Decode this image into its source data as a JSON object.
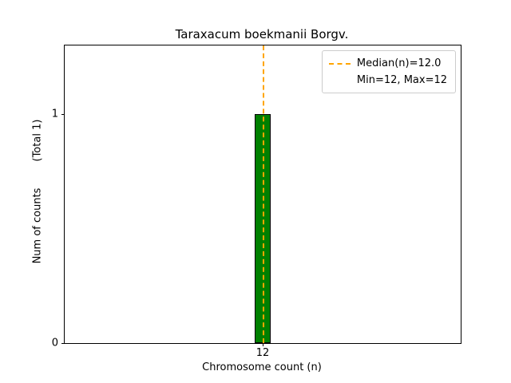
{
  "figure": {
    "title": "Taraxacum boekmanii Borgv.",
    "xlabel": "Chromosome count (n)",
    "ylabel": "Num of counts        (Total 1)"
  },
  "legend": {
    "items": [
      {
        "label": "Median(n)=12.0",
        "marker": "dashed-line",
        "color": "#FFA500"
      },
      {
        "label": "Min=12, Max=12",
        "marker": "none",
        "color": ""
      }
    ]
  },
  "chart_data": {
    "type": "bar",
    "title": "Taraxacum boekmanii Borgv.",
    "xlabel": "Chromosome count (n)",
    "ylabel": "Num of counts",
    "total_annotation": "(Total 1)",
    "categories": [
      12
    ],
    "values": [
      1
    ],
    "bar_color": "#008000",
    "bar_edge_color": "#000000",
    "bar_width": 0.04,
    "median_line": {
      "x": 12,
      "label": "Median(n)=12.0",
      "color": "#FFA500",
      "style": "dashed"
    },
    "min": 12,
    "max": 12,
    "xlim": [
      11.5,
      12.5
    ],
    "ylim": [
      0,
      1.3
    ],
    "xticks": [
      12
    ],
    "yticks": [
      0,
      1
    ],
    "grid": false,
    "legend_position": "upper right"
  }
}
